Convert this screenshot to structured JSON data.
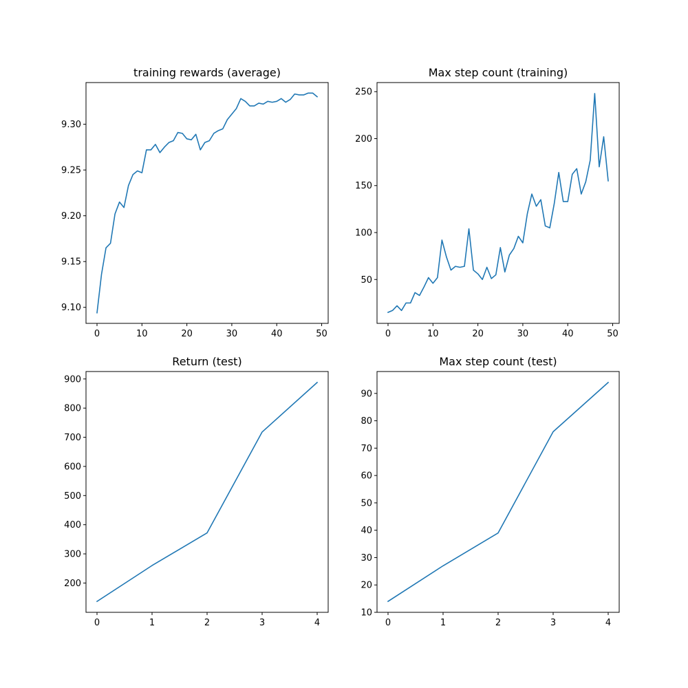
{
  "figure": {
    "background": "#ffffff",
    "line_color": "#1f77b4"
  },
  "chart_data": [
    {
      "type": "line",
      "title": "training rewards (average)",
      "xlabel": "",
      "ylabel": "",
      "xlim": [
        -2.45,
        51.45
      ],
      "ylim": [
        9.0825,
        9.3455
      ],
      "xticks": [
        0,
        10,
        20,
        30,
        40,
        50
      ],
      "yticks": [
        9.1,
        9.15,
        9.2,
        9.25,
        9.3
      ],
      "xtick_labels": [
        "0",
        "10",
        "20",
        "30",
        "40",
        "50"
      ],
      "ytick_labels": [
        "9.10",
        "9.15",
        "9.20",
        "9.25",
        "9.30"
      ],
      "grid": false,
      "series": [
        {
          "x": [
            0,
            1,
            2,
            3,
            4,
            5,
            6,
            7,
            8,
            9,
            10,
            11,
            12,
            13,
            14,
            15,
            16,
            17,
            18,
            19,
            20,
            21,
            22,
            23,
            24,
            25,
            26,
            27,
            28,
            29,
            30,
            31,
            32,
            33,
            34,
            35,
            36,
            37,
            38,
            39,
            40,
            41,
            42,
            43,
            44,
            45,
            46,
            47,
            48,
            49
          ],
          "values": [
            9.094,
            9.136,
            9.165,
            9.17,
            9.202,
            9.215,
            9.209,
            9.233,
            9.245,
            9.249,
            9.247,
            9.272,
            9.272,
            9.278,
            9.269,
            9.275,
            9.28,
            9.282,
            9.291,
            9.29,
            9.284,
            9.283,
            9.289,
            9.272,
            9.28,
            9.282,
            9.29,
            9.293,
            9.295,
            9.305,
            9.311,
            9.317,
            9.328,
            9.325,
            9.32,
            9.32,
            9.323,
            9.322,
            9.325,
            9.324,
            9.325,
            9.328,
            9.324,
            9.327,
            9.333,
            9.332,
            9.332,
            9.334,
            9.334,
            9.33
          ]
        }
      ]
    },
    {
      "type": "line",
      "title": "Max step count (training)",
      "xlabel": "",
      "ylabel": "",
      "xlim": [
        -2.45,
        51.45
      ],
      "ylim": [
        3.3,
        259.7
      ],
      "xticks": [
        0,
        10,
        20,
        30,
        40,
        50
      ],
      "yticks": [
        50,
        100,
        150,
        200,
        250
      ],
      "xtick_labels": [
        "0",
        "10",
        "20",
        "30",
        "40",
        "50"
      ],
      "ytick_labels": [
        "50",
        "100",
        "150",
        "200",
        "250"
      ],
      "grid": false,
      "series": [
        {
          "x": [
            0,
            1,
            2,
            3,
            4,
            5,
            6,
            7,
            8,
            9,
            10,
            11,
            12,
            13,
            14,
            15,
            16,
            17,
            18,
            19,
            20,
            21,
            22,
            23,
            24,
            25,
            26,
            27,
            28,
            29,
            30,
            31,
            32,
            33,
            34,
            35,
            36,
            37,
            38,
            39,
            40,
            41,
            42,
            43,
            44,
            45,
            46,
            47,
            48,
            49
          ],
          "values": [
            15,
            17,
            22,
            17,
            25,
            25,
            36,
            33,
            42,
            52,
            46,
            52,
            92,
            74,
            60,
            64,
            63,
            64,
            104,
            60,
            56,
            50,
            63,
            51,
            55,
            84,
            58,
            76,
            83,
            96,
            89,
            120,
            141,
            128,
            135,
            107,
            105,
            131,
            164,
            133,
            133,
            162,
            168,
            141,
            154,
            177,
            248,
            170,
            202,
            155
          ]
        }
      ]
    },
    {
      "type": "line",
      "title": "Return (test)",
      "xlabel": "",
      "ylabel": "",
      "xlim": [
        -0.2,
        4.2
      ],
      "ylim": [
        99.5,
        925.5
      ],
      "xticks": [
        0,
        1,
        2,
        3,
        4
      ],
      "yticks": [
        200,
        300,
        400,
        500,
        600,
        700,
        800,
        900
      ],
      "xtick_labels": [
        "0",
        "1",
        "2",
        "3",
        "4"
      ],
      "ytick_labels": [
        "200",
        "300",
        "400",
        "500",
        "600",
        "700",
        "800",
        "900"
      ],
      "grid": false,
      "series": [
        {
          "x": [
            0,
            1,
            2,
            3,
            4
          ],
          "values": [
            137,
            260,
            372,
            718,
            888
          ]
        }
      ]
    },
    {
      "type": "line",
      "title": "Max step count (test)",
      "xlabel": "",
      "ylabel": "",
      "xlim": [
        -0.2,
        4.2
      ],
      "ylim": [
        10,
        98
      ],
      "xticks": [
        0,
        1,
        2,
        3,
        4
      ],
      "yticks": [
        10,
        20,
        30,
        40,
        50,
        60,
        70,
        80,
        90
      ],
      "xtick_labels": [
        "0",
        "1",
        "2",
        "3",
        "4"
      ],
      "ytick_labels": [
        "10",
        "20",
        "30",
        "40",
        "50",
        "60",
        "70",
        "80",
        "90"
      ],
      "grid": false,
      "series": [
        {
          "x": [
            0,
            1,
            2,
            3,
            4
          ],
          "values": [
            14,
            27,
            39,
            76,
            94
          ]
        }
      ]
    }
  ]
}
